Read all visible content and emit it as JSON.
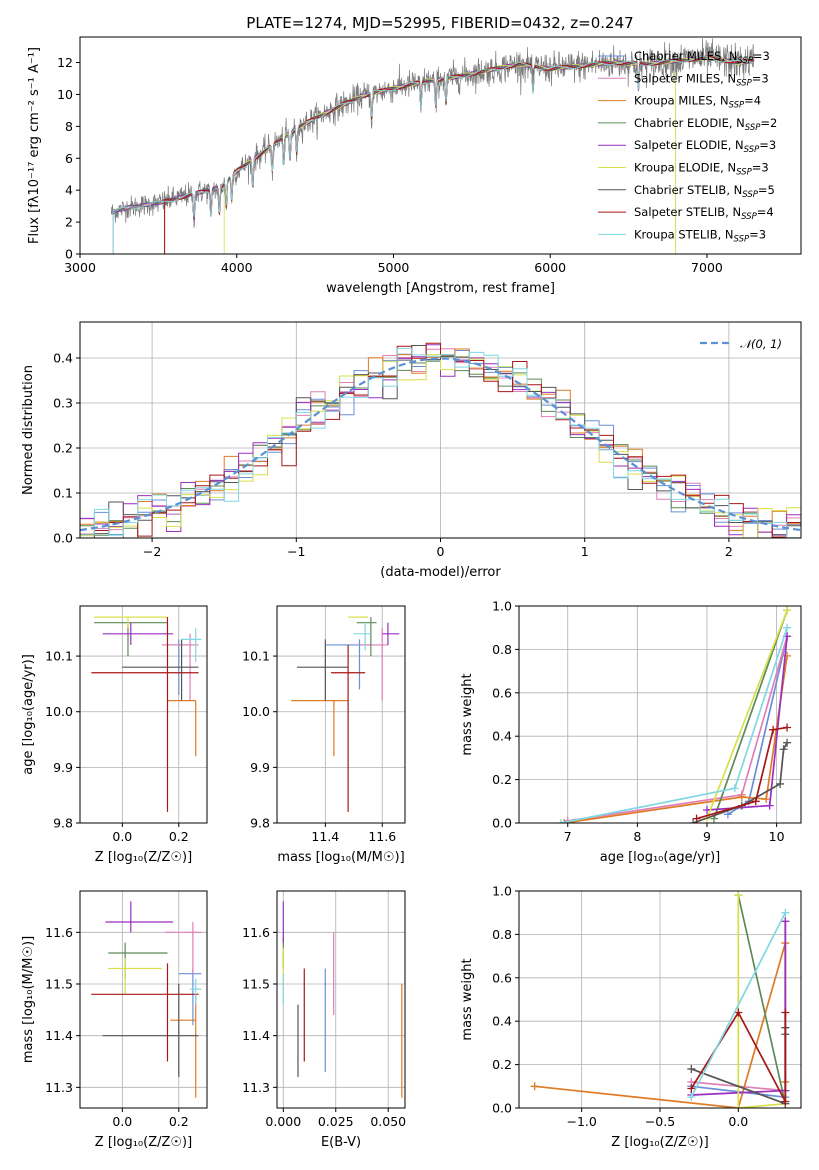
{
  "figure_title": "PLATE=1274, MJD=52995, FIBERID=0432, z=0.247",
  "colors": {
    "chabrier_miles": "#6a8fd8",
    "salpeter_miles": "#e07fb8",
    "kroupa_miles": "#e07b25",
    "chabrier_elodie": "#5c8a57",
    "salpeter_elodie": "#9b2fc0",
    "kroupa_elodie": "#d7e04a",
    "chabrier_stelib": "#555555",
    "salpeter_stelib": "#a81717",
    "kroupa_stelib": "#7fd8e2",
    "normal_curve": "#5b8fd6"
  },
  "chart_data": [
    {
      "id": "spectrum",
      "type": "line",
      "xlabel": "wavelength [Angstrom, rest frame]",
      "ylabel": "Flux [fλ10⁻¹⁷ erg cm⁻² s⁻¹ A⁻¹]",
      "xlim": [
        3000,
        7600
      ],
      "ylim": [
        0,
        13.6
      ],
      "xticks": [
        "3000",
        "4000",
        "5000",
        "6000",
        "7000"
      ],
      "yticks": [
        "0",
        "2",
        "4",
        "6",
        "8",
        "10",
        "12"
      ],
      "legend_position": "top-right",
      "legend": [
        {
          "label": "Chabrier MILES, N",
          "sub": "SSP",
          "tail": "=3",
          "color_key": "chabrier_miles"
        },
        {
          "label": "Salpeter MILES, N",
          "sub": "SSP",
          "tail": "=3",
          "color_key": "salpeter_miles"
        },
        {
          "label": "Kroupa MILES, N",
          "sub": "SSP",
          "tail": "=4",
          "color_key": "kroupa_miles"
        },
        {
          "label": "Chabrier ELODIE, N",
          "sub": "SSP",
          "tail": "=2",
          "color_key": "chabrier_elodie"
        },
        {
          "label": "Salpeter ELODIE, N",
          "sub": "SSP",
          "tail": "=3",
          "color_key": "salpeter_elodie"
        },
        {
          "label": "Kroupa ELODIE, N",
          "sub": "SSP",
          "tail": "=3",
          "color_key": "kroupa_elodie"
        },
        {
          "label": "Chabrier STELIB, N",
          "sub": "SSP",
          "tail": "=5",
          "color_key": "chabrier_stelib"
        },
        {
          "label": "Salpeter STELIB, N",
          "sub": "SSP",
          "tail": "=4",
          "color_key": "salpeter_stelib"
        },
        {
          "label": "Kroupa STELIB, N",
          "sub": "SSP",
          "tail": "=3",
          "color_key": "kroupa_stelib"
        }
      ],
      "continuum": {
        "x": [
          3200,
          3300,
          3500,
          3700,
          3900,
          4000,
          4200,
          4400,
          4600,
          4800,
          5000,
          5200,
          5400,
          5600,
          5800,
          6000,
          6200,
          6400,
          6600,
          6800,
          7000,
          7200,
          7300
        ],
        "y": [
          2.6,
          2.9,
          3.2,
          3.7,
          4.2,
          5.2,
          6.6,
          8.0,
          9.0,
          9.9,
          10.4,
          10.8,
          11.1,
          11.5,
          11.9,
          11.6,
          11.8,
          12.0,
          11.9,
          12.1,
          12.3,
          12.0,
          12.1
        ]
      },
      "model_start_x": {
        "salpeter_stelib": 3540,
        "kroupa_elodie": 3920,
        "default": 3210
      },
      "model_end_x": 7300
    },
    {
      "id": "residual_histogram",
      "type": "histogram",
      "xlabel": "(data-model)/error",
      "ylabel": "Normed distribution",
      "xlim": [
        -2.5,
        2.5
      ],
      "ylim": [
        0,
        0.48
      ],
      "xticks": [
        "−2",
        "−1",
        "0",
        "1",
        "2"
      ],
      "yticks": [
        "0.0",
        "0.1",
        "0.2",
        "0.3",
        "0.4"
      ],
      "grid": true,
      "bins": 50,
      "legend_position": "top-right",
      "legend": [
        {
          "label": "𝒩(0, 1)",
          "color_key": "normal_curve"
        }
      ],
      "normal": {
        "mean": 0,
        "sd": 1
      }
    },
    {
      "id": "age_vs_Z",
      "type": "errorbar",
      "xlabel": "Z [log₁₀(Z/Z☉)]",
      "ylabel": "age  [log₁₀(age/yr)]",
      "xlim": [
        -0.15,
        0.3
      ],
      "ylim": [
        9.8,
        10.19
      ],
      "xticks": [
        "0.0",
        "0.2"
      ],
      "yticks": [
        "9.8",
        "9.9",
        "10.0",
        "10.1"
      ],
      "grid": true,
      "points": [
        {
          "key": "chabrier_miles",
          "x": 0.2,
          "xerr": [
            0.05,
            0.05
          ],
          "y": 10.12,
          "yerr": [
            0.09,
            0.01
          ]
        },
        {
          "key": "salpeter_miles",
          "x": 0.24,
          "xerr": [
            0.1,
            0.03
          ],
          "y": 10.12,
          "yerr": [
            0.1,
            0.02
          ]
        },
        {
          "key": "kroupa_miles",
          "x": 0.26,
          "xerr": [
            0.1,
            0.0
          ],
          "y": 10.02,
          "yerr": [
            0.1,
            0.0
          ]
        },
        {
          "key": "chabrier_elodie",
          "x": 0.02,
          "xerr": [
            0.12,
            0.14
          ],
          "y": 10.16,
          "yerr": [
            0.06,
            0.0
          ]
        },
        {
          "key": "salpeter_elodie",
          "x": 0.03,
          "xerr": [
            0.1,
            0.15
          ],
          "y": 10.14,
          "yerr": [
            0.02,
            0.02
          ]
        },
        {
          "key": "kroupa_elodie",
          "x": 0.02,
          "xerr": [
            0.12,
            0.14
          ],
          "y": 10.17,
          "yerr": [
            0.02,
            0.0
          ]
        },
        {
          "key": "chabrier_stelib",
          "x": 0.21,
          "xerr": [
            0.21,
            0.06
          ],
          "y": 10.08,
          "yerr": [
            0.06,
            0.05
          ]
        },
        {
          "key": "salpeter_stelib",
          "x": 0.16,
          "xerr": [
            0.27,
            0.11
          ],
          "y": 10.07,
          "yerr": [
            0.25,
            0.1
          ]
        },
        {
          "key": "kroupa_stelib",
          "x": 0.26,
          "xerr": [
            0.05,
            0.02
          ],
          "y": 10.13,
          "yerr": [
            0.04,
            0.02
          ]
        }
      ]
    },
    {
      "id": "age_vs_mass",
      "type": "errorbar",
      "xlabel": "mass [log₁₀(M/M☉)]",
      "ylabel": "",
      "xlim": [
        11.23,
        11.68
      ],
      "ylim": [
        9.8,
        10.19
      ],
      "xticks": [
        "11.4",
        "11.6"
      ],
      "yticks": [
        "9.8",
        "9.9",
        "10.0",
        "10.1"
      ],
      "grid": true,
      "points": [
        {
          "key": "chabrier_miles",
          "x": 11.52,
          "xerr": [
            0.12,
            0.04
          ],
          "y": 10.12,
          "yerr": [
            0.08,
            0.01
          ]
        },
        {
          "key": "salpeter_miles",
          "x": 11.6,
          "xerr": [
            0.08,
            0.02
          ],
          "y": 10.12,
          "yerr": [
            0.1,
            0.03
          ]
        },
        {
          "key": "kroupa_miles",
          "x": 11.43,
          "xerr": [
            0.15,
            0.05
          ],
          "y": 10.02,
          "yerr": [
            0.1,
            0.0
          ]
        },
        {
          "key": "chabrier_elodie",
          "x": 11.56,
          "xerr": [
            0.05,
            0.02
          ],
          "y": 10.16,
          "yerr": [
            0.06,
            0.01
          ]
        },
        {
          "key": "salpeter_elodie",
          "x": 11.62,
          "xerr": [
            0.02,
            0.04
          ],
          "y": 10.14,
          "yerr": [
            0.02,
            0.02
          ]
        },
        {
          "key": "kroupa_elodie",
          "x": 11.53,
          "xerr": [
            0.05,
            0.02
          ],
          "y": 10.17,
          "yerr": [
            0.0,
            0.0
          ]
        },
        {
          "key": "chabrier_stelib",
          "x": 11.4,
          "xerr": [
            0.1,
            0.08
          ],
          "y": 10.08,
          "yerr": [
            0.06,
            0.05
          ]
        },
        {
          "key": "salpeter_stelib",
          "x": 11.48,
          "xerr": [
            0.06,
            0.06
          ],
          "y": 10.07,
          "yerr": [
            0.25,
            0.05
          ]
        },
        {
          "key": "kroupa_stelib",
          "x": 11.54,
          "xerr": [
            0.04,
            0.02
          ],
          "y": 10.14,
          "yerr": [
            0.03,
            0.02
          ]
        }
      ]
    },
    {
      "id": "massweight_vs_age",
      "type": "line",
      "xlabel": "age  [log₁₀(age/yr)]",
      "ylabel": "mass weight",
      "xlim": [
        6.3,
        10.35
      ],
      "ylim": [
        0,
        1
      ],
      "xticks": [
        "7",
        "8",
        "9",
        "10"
      ],
      "yticks": [
        "0.0",
        "0.2",
        "0.4",
        "0.6",
        "0.8",
        "1.0"
      ],
      "grid": true,
      "series": [
        {
          "key": "chabrier_miles",
          "x": [
            9.3,
            9.6,
            10.15
          ],
          "y": [
            0.04,
            0.1,
            0.86
          ]
        },
        {
          "key": "salpeter_miles",
          "x": [
            7.0,
            9.5,
            10.15
          ],
          "y": [
            0.01,
            0.13,
            0.86
          ]
        },
        {
          "key": "kroupa_miles",
          "x": [
            6.95,
            9.5,
            9.85,
            10.15
          ],
          "y": [
            0.0,
            0.12,
            0.11,
            0.77
          ]
        },
        {
          "key": "chabrier_elodie",
          "x": [
            9.1,
            10.15
          ],
          "y": [
            0.02,
            0.98
          ]
        },
        {
          "key": "salpeter_elodie",
          "x": [
            9.0,
            9.9,
            10.15
          ],
          "y": [
            0.06,
            0.08,
            0.86
          ]
        },
        {
          "key": "kroupa_elodie",
          "x": [
            9.0,
            10.15
          ],
          "y": [
            0.02,
            0.98
          ]
        },
        {
          "key": "chabrier_stelib",
          "x": [
            8.8,
            9.5,
            10.05,
            10.1,
            10.15
          ],
          "y": [
            0.0,
            0.08,
            0.18,
            0.34,
            0.37
          ]
        },
        {
          "key": "salpeter_stelib",
          "x": [
            8.85,
            9.7,
            9.95,
            10.15
          ],
          "y": [
            0.02,
            0.1,
            0.43,
            0.44
          ]
        },
        {
          "key": "kroupa_stelib",
          "x": [
            6.9,
            9.4,
            10.15
          ],
          "y": [
            0.0,
            0.16,
            0.9
          ]
        }
      ]
    },
    {
      "id": "mass_vs_Z",
      "type": "errorbar",
      "xlabel": "Z [log₁₀(Z/Z☉)]",
      "ylabel": "mass [log₁₀(M/M☉)]",
      "xlim": [
        -0.15,
        0.3
      ],
      "ylim": [
        11.26,
        11.68
      ],
      "xticks": [
        "0.0",
        "0.2"
      ],
      "yticks": [
        "11.3",
        "11.4",
        "11.5",
        "11.6"
      ],
      "grid": true,
      "points": [
        {
          "key": "chabrier_miles",
          "x": 0.25,
          "xerr": [
            0.05,
            0.03
          ],
          "y": 11.52,
          "yerr": [
            0.1,
            0.01
          ]
        },
        {
          "key": "salpeter_miles",
          "x": 0.25,
          "xerr": [
            0.1,
            0.03
          ],
          "y": 11.6,
          "yerr": [
            0.08,
            0.02
          ]
        },
        {
          "key": "kroupa_miles",
          "x": 0.26,
          "xerr": [
            0.09,
            0.0
          ],
          "y": 11.43,
          "yerr": [
            0.15,
            0.05
          ]
        },
        {
          "key": "chabrier_elodie",
          "x": 0.01,
          "xerr": [
            0.06,
            0.15
          ],
          "y": 11.56,
          "yerr": [
            0.05,
            0.02
          ]
        },
        {
          "key": "salpeter_elodie",
          "x": 0.03,
          "xerr": [
            0.09,
            0.15
          ],
          "y": 11.62,
          "yerr": [
            0.02,
            0.04
          ]
        },
        {
          "key": "kroupa_elodie",
          "x": 0.01,
          "xerr": [
            0.06,
            0.13
          ],
          "y": 11.53,
          "yerr": [
            0.05,
            0.02
          ]
        },
        {
          "key": "chabrier_stelib",
          "x": 0.2,
          "xerr": [
            0.27,
            0.07
          ],
          "y": 11.4,
          "yerr": [
            0.08,
            0.1
          ]
        },
        {
          "key": "salpeter_stelib",
          "x": 0.16,
          "xerr": [
            0.27,
            0.11
          ],
          "y": 11.48,
          "yerr": [
            0.13,
            0.06
          ]
        },
        {
          "key": "kroupa_stelib",
          "x": 0.26,
          "xerr": [
            0.02,
            0.02
          ],
          "y": 11.49,
          "yerr": [
            0.03,
            0.02
          ]
        }
      ]
    },
    {
      "id": "mass_vs_EBV",
      "type": "errorbar",
      "xlabel": "E(B-V)",
      "ylabel": "",
      "xlim": [
        -0.003,
        0.058
      ],
      "ylim": [
        11.26,
        11.68
      ],
      "xticks": [
        "0.000",
        "0.025",
        "0.050"
      ],
      "yticks": [
        "11.3",
        "11.4",
        "11.5",
        "11.6"
      ],
      "grid": true,
      "points": [
        {
          "key": "chabrier_miles",
          "x": 0.02,
          "xerr": [
            0,
            0
          ],
          "y": 11.43,
          "yerr": [
            0.1,
            0.1
          ]
        },
        {
          "key": "salpeter_miles",
          "x": 0.024,
          "xerr": [
            0,
            0
          ],
          "y": 11.52,
          "yerr": [
            0.08,
            0.08
          ]
        },
        {
          "key": "kroupa_miles",
          "x": 0.0565,
          "xerr": [
            0,
            0
          ],
          "y": 11.39,
          "yerr": [
            0.11,
            0.11
          ]
        },
        {
          "key": "chabrier_elodie",
          "x": 0.0,
          "xerr": [
            0,
            0
          ],
          "y": 11.56,
          "yerr": [
            0.03,
            0.03
          ]
        },
        {
          "key": "salpeter_elodie",
          "x": 0.0,
          "xerr": [
            0,
            0
          ],
          "y": 11.62,
          "yerr": [
            0.04,
            0.04
          ]
        },
        {
          "key": "kroupa_elodie",
          "x": 0.0,
          "xerr": [
            0,
            0
          ],
          "y": 11.53,
          "yerr": [
            0.04,
            0.04
          ]
        },
        {
          "key": "chabrier_stelib",
          "x": 0.007,
          "xerr": [
            0,
            0
          ],
          "y": 11.39,
          "yerr": [
            0.07,
            0.07
          ]
        },
        {
          "key": "salpeter_stelib",
          "x": 0.01,
          "xerr": [
            0,
            0
          ],
          "y": 11.44,
          "yerr": [
            0.09,
            0.09
          ]
        },
        {
          "key": "kroupa_stelib",
          "x": 0.0,
          "xerr": [
            0,
            0
          ],
          "y": 11.49,
          "yerr": [
            0.03,
            0.03
          ]
        }
      ]
    },
    {
      "id": "massweight_vs_Z",
      "type": "line",
      "xlabel": "Z [log₁₀(Z/Z☉)]",
      "ylabel": "mass weight",
      "xlim": [
        -1.4,
        0.4
      ],
      "ylim": [
        0,
        1
      ],
      "xticks": [
        "−1.0",
        "−0.5",
        "0.0"
      ],
      "yticks": [
        "0.0",
        "0.2",
        "0.4",
        "0.6",
        "0.8",
        "1.0"
      ],
      "grid": true,
      "series": [
        {
          "key": "chabrier_miles",
          "x": [
            -0.3,
            0.3,
            0.3
          ],
          "y": [
            0.1,
            0.05,
            0.86
          ]
        },
        {
          "key": "salpeter_miles",
          "x": [
            -0.3,
            0.3,
            0.3
          ],
          "y": [
            0.12,
            0.08,
            0.86
          ]
        },
        {
          "key": "kroupa_miles",
          "x": [
            -1.3,
            0.0,
            0.3,
            0.3
          ],
          "y": [
            0.1,
            0.0,
            0.76,
            0.12
          ]
        },
        {
          "key": "chabrier_elodie",
          "x": [
            0.0,
            0.3
          ],
          "y": [
            0.98,
            0.02
          ]
        },
        {
          "key": "salpeter_elodie",
          "x": [
            -0.3,
            0.3,
            0.3
          ],
          "y": [
            0.06,
            0.08,
            0.86
          ]
        },
        {
          "key": "kroupa_elodie",
          "x": [
            0.0,
            0.0,
            0.3
          ],
          "y": [
            0.98,
            0.0,
            0.02
          ]
        },
        {
          "key": "chabrier_stelib",
          "x": [
            -0.3,
            0.3,
            0.3,
            0.3
          ],
          "y": [
            0.18,
            0.02,
            0.34,
            0.37
          ]
        },
        {
          "key": "salpeter_stelib",
          "x": [
            -0.3,
            0.0,
            0.3,
            0.3
          ],
          "y": [
            0.09,
            0.44,
            0.03,
            0.44
          ]
        },
        {
          "key": "kroupa_stelib",
          "x": [
            -0.3,
            0.3
          ],
          "y": [
            0.05,
            0.9
          ]
        }
      ]
    }
  ]
}
